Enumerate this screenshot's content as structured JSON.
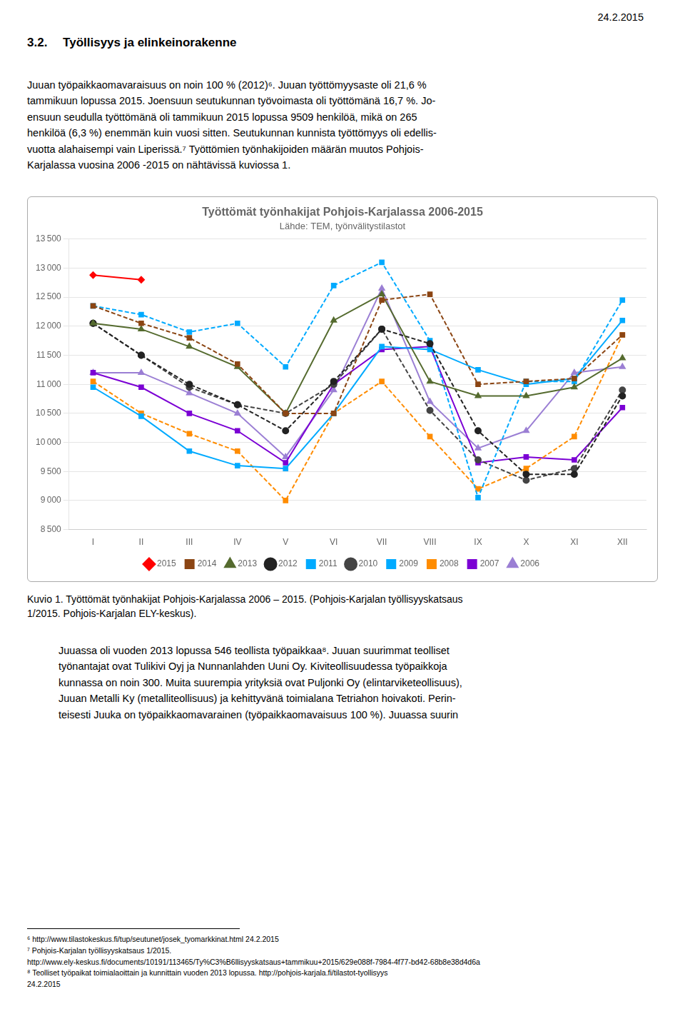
{
  "date_header": "24.2.2015",
  "section_header": "3.2.  Työllisyys ja elinkeinorakenne",
  "para1": "Juuan työpaikkaomavaraisuus on noin 100 % (2012)⁶. Juuan työttömyysaste oli 21,6 %\ntammikuun lopussa 2015. Joensuun seutukunnan työvoimasta oli työttömänä 16,7 %. Jo-\nensuun seudulla työttömänä oli tammikuun 2015 lopussa 9509 henkilöä, mikä on 265\nhenkilöä (6,3 %) enemmän kuin vuosi sitten. Seutukunnan kunnista työttömyys oli edellis-\nvuotta alahaisempi vain Liperissä.⁷ Työttömien työnhakijoiden määrän muutos Pohjois-\nKarjalassa vuosina 2006 -2015 on nähtävissä kuviossa 1.",
  "caption": "Kuvio 1. Työttömät työnhakijat Pohjois-Karjalassa 2006 – 2015. (Pohjois-Karjalan työllisyyskatsaus\n1/2015. Pohjois-Karjalan ELY-keskus).",
  "para2": "Juuassa oli vuoden 2013 lopussa 546 teollista työpaikkaa⁸. Juuan suurimmat teolliset\ntyönantajat ovat Tulikivi Oyj ja Nunnanlahden Uuni Oy. Kiviteollisuudessa työpaikkoja\nkunnassa on noin 300. Muita suurempia yrityksiä ovat Puljonki Oy (elintarviketeollisuus),\nJuuan Metalli Ky (metalliteollisuus) ja kehittyvänä toimialana Tetriahon hoivakoti. Perin-\nteisesti Juuka on työpaikkaomavarainen (työpaikkaomavaisuus 100 %). Juuassa suurin",
  "footnotes": [
    "⁶  http://www.tilastokeskus.fi/tup/seutunet/josek_tyomarkkinat.html  24.2.2015",
    "⁷ Pohjois-Karjalan työllisyyskatsaus 1/2015.",
    "http://www.ely-keskus.fi/documents/10191/113465/Ty%C3%B6llisyyskatsaus+tammikuu+2015/629e088f-7984-4f77-bd42-68b8e38d4d6a",
    "⁸ Teolliset työpaikat toimialaoittain ja kunnittain vuoden 2013 lopussa. http://pohjois-karjala.fi/tilastot-tyollisyys",
    "24.2.2015"
  ],
  "chart_data": {
    "type": "line",
    "title": "Työttömät työnhakijat Pohjois-Karjalassa 2006-2015",
    "subtitle": "Lähde: TEM, työnvälitystilastot",
    "categories": [
      "I",
      "II",
      "III",
      "IV",
      "V",
      "VI",
      "VII",
      "VIII",
      "IX",
      "X",
      "XI",
      "XII"
    ],
    "series": [
      {
        "name": "2015",
        "color": "#FF0000",
        "marker": "diamond",
        "line_style": "solid",
        "values": [
          12880,
          12800,
          null,
          null,
          null,
          null,
          null,
          null,
          null,
          null,
          null,
          null
        ]
      },
      {
        "name": "2014",
        "color": "#8B4513",
        "marker": "square",
        "line_style": "dashed",
        "values": [
          12350,
          12050,
          11800,
          11350,
          10500,
          10500,
          12450,
          12550,
          11000,
          11050,
          11100,
          11850
        ]
      },
      {
        "name": "2013",
        "color": "#556B2F",
        "marker": "triangle",
        "line_style": "solid",
        "values": [
          12050,
          11950,
          11650,
          11300,
          10500,
          12100,
          12550,
          11050,
          10800,
          10800,
          10950,
          11450
        ]
      },
      {
        "name": "2012",
        "color": "#222222",
        "marker": "circle",
        "line_style": "dashed",
        "values": [
          12050,
          11500,
          11000,
          10650,
          10200,
          11050,
          11950,
          11700,
          10200,
          9450,
          9450,
          10800
        ]
      },
      {
        "name": "2011",
        "color": "#00AAFF",
        "marker": "square",
        "line_style": "dashed",
        "values": [
          12350,
          12200,
          11900,
          12050,
          11300,
          12700,
          13100,
          11750,
          9050,
          11050,
          11050,
          12450
        ]
      },
      {
        "name": "2010",
        "color": "#444444",
        "marker": "circle",
        "line_style": "dashed",
        "values": [
          12050,
          11500,
          10950,
          10650,
          10500,
          11000,
          11950,
          10550,
          9700,
          9350,
          9550,
          10900
        ]
      },
      {
        "name": "2009",
        "color": "#00AAFF",
        "marker": "square",
        "line_style": "solid",
        "values": [
          10950,
          10450,
          9850,
          9600,
          9550,
          10500,
          11650,
          11600,
          11250,
          11000,
          11100,
          12100
        ]
      },
      {
        "name": "2008",
        "color": "#FF8C00",
        "marker": "square",
        "line_style": "dashed",
        "values": [
          11050,
          10500,
          10150,
          9850,
          9000,
          10500,
          11050,
          10100,
          9200,
          9550,
          10100,
          11850
        ]
      },
      {
        "name": "2007",
        "color": "#7B00D4",
        "marker": "square",
        "line_style": "solid",
        "values": [
          11200,
          10950,
          10500,
          10200,
          9650,
          11000,
          11600,
          11650,
          9650,
          9750,
          9700,
          10600
        ]
      },
      {
        "name": "2006",
        "color": "#9B7FD4",
        "marker": "triangle",
        "line_style": "solid",
        "values": [
          11200,
          11200,
          10850,
          10500,
          9750,
          10900,
          12650,
          10700,
          9900,
          10200,
          11200,
          11300
        ]
      }
    ],
    "ylim": [
      8500,
      13500
    ],
    "yticks": [
      {
        "value": 8500,
        "label": "8 500"
      },
      {
        "value": 9000,
        "label": "9 000"
      },
      {
        "value": 9500,
        "label": "9 500"
      },
      {
        "value": 10000,
        "label": "10 000"
      },
      {
        "value": 10500,
        "label": "10 500"
      },
      {
        "value": 11000,
        "label": "11 000"
      },
      {
        "value": 11500,
        "label": "11 500"
      },
      {
        "value": 12000,
        "label": "12 000"
      },
      {
        "value": 12500,
        "label": "12 500"
      },
      {
        "value": 13000,
        "label": "13 000"
      },
      {
        "value": 13500,
        "label": "13 500"
      }
    ],
    "grid": true,
    "legend": "bottom"
  }
}
